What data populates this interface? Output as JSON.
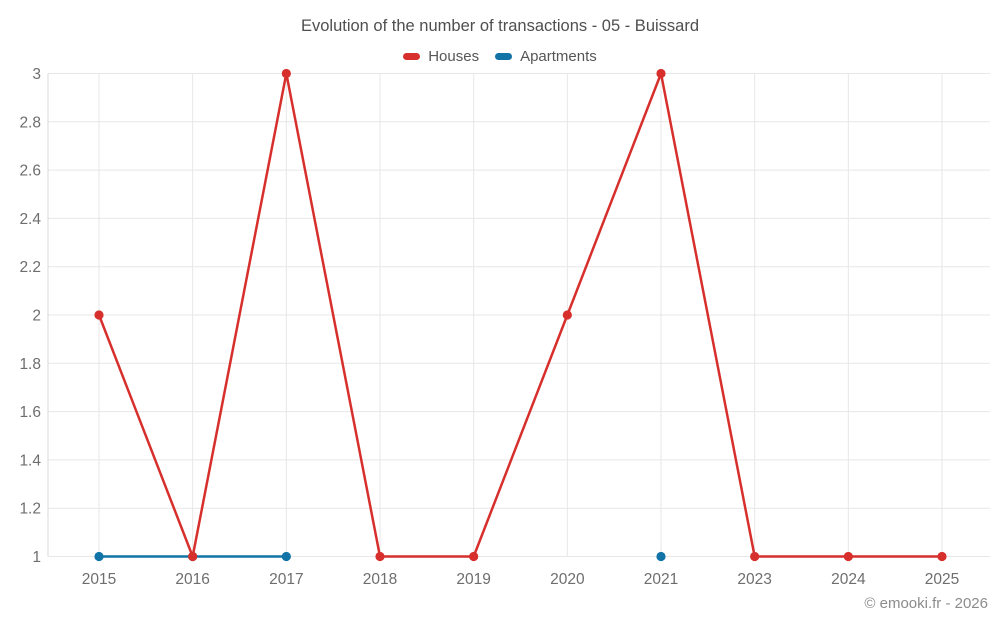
{
  "title": "Evolution of the number of transactions - 05 - Buissard",
  "watermark": "© emooki.fr - 2026",
  "legend": [
    {
      "label": "Houses",
      "color": "#d62f2c"
    },
    {
      "label": "Apartments",
      "color": "#1173a6"
    }
  ],
  "colors": {
    "houses": "#d62f2c",
    "apartments": "#1173a6",
    "gridline": "#e7e7e7",
    "axis_line": "#d9d9d9",
    "tick_label": "#6e6e6e",
    "title_text": "#4f4f4f",
    "watermark_text": "#8c8c8c"
  },
  "chart_data": {
    "type": "line",
    "title": "Evolution of the number of transactions - 05 - Buissard",
    "categories": [
      "2015",
      "2016",
      "2017",
      "2018",
      "2019",
      "2020",
      "2021",
      "2023",
      "2024",
      "2025"
    ],
    "series": [
      {
        "name": "Houses",
        "color": "#d62f2c",
        "values": [
          2,
          1,
          3,
          1,
          1,
          2,
          3,
          1,
          1,
          1
        ]
      },
      {
        "name": "Apartments",
        "color": "#1173a6",
        "values": [
          1,
          1,
          1,
          null,
          null,
          null,
          1,
          null,
          null,
          null
        ]
      }
    ],
    "xlabel": "",
    "ylabel": "",
    "ylim": [
      1,
      3
    ],
    "yticks": [
      1,
      1.2,
      1.4,
      1.6,
      1.8,
      2,
      2.2,
      2.4,
      2.6,
      2.8,
      3
    ],
    "grid": true,
    "legend_position": "top"
  }
}
